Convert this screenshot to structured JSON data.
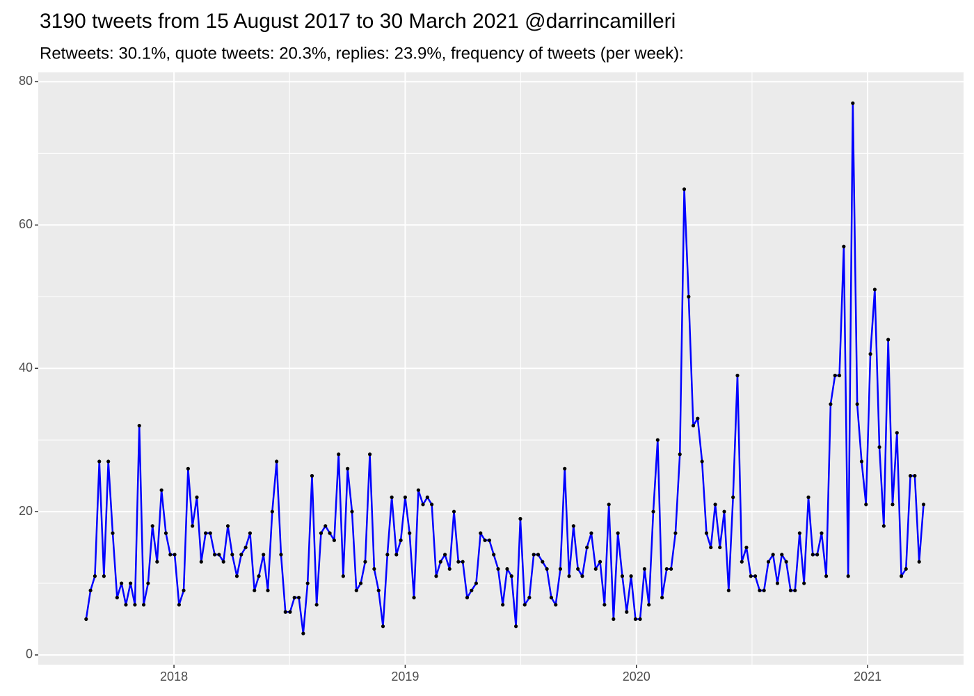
{
  "chart_data": {
    "type": "line",
    "title": "3190 tweets from 15 August 2017 to 30 March 2021 @darrincamilleri",
    "subtitle": "Retweets: 30.1%, quote tweets: 20.3%, replies: 23.9%, frequency of tweets (per week):",
    "color": "#0000ff",
    "point_color": "#000000",
    "grid": true,
    "xlim": [
      2017.413,
      2021.415
    ],
    "xticks": [
      2018,
      2019,
      2020,
      2021
    ],
    "ylim": [
      -1.36,
      81.3
    ],
    "yticks": [
      0,
      20,
      40,
      60,
      80
    ],
    "x": [
      2017.62,
      2017.639,
      2017.658,
      2017.677,
      2017.697,
      2017.716,
      2017.735,
      2017.754,
      2017.773,
      2017.792,
      2017.812,
      2017.831,
      2017.85,
      2017.869,
      2017.888,
      2017.907,
      2017.927,
      2017.946,
      2017.965,
      2017.984,
      2018.003,
      2018.022,
      2018.042,
      2018.061,
      2018.08,
      2018.099,
      2018.118,
      2018.137,
      2018.157,
      2018.176,
      2018.195,
      2018.214,
      2018.233,
      2018.252,
      2018.272,
      2018.291,
      2018.31,
      2018.329,
      2018.348,
      2018.367,
      2018.387,
      2018.406,
      2018.425,
      2018.444,
      2018.463,
      2018.482,
      2018.502,
      2018.521,
      2018.54,
      2018.559,
      2018.578,
      2018.597,
      2018.617,
      2018.636,
      2018.655,
      2018.674,
      2018.693,
      2018.712,
      2018.732,
      2018.751,
      2018.77,
      2018.789,
      2018.808,
      2018.827,
      2018.847,
      2018.866,
      2018.885,
      2018.904,
      2018.923,
      2018.942,
      2018.962,
      2018.981,
      2019.0,
      2019.019,
      2019.038,
      2019.057,
      2019.077,
      2019.096,
      2019.115,
      2019.134,
      2019.153,
      2019.172,
      2019.192,
      2019.211,
      2019.23,
      2019.249,
      2019.268,
      2019.287,
      2019.307,
      2019.326,
      2019.345,
      2019.364,
      2019.383,
      2019.402,
      2019.422,
      2019.441,
      2019.46,
      2019.479,
      2019.498,
      2019.517,
      2019.537,
      2019.556,
      2019.575,
      2019.594,
      2019.613,
      2019.632,
      2019.651,
      2019.671,
      2019.69,
      2019.709,
      2019.728,
      2019.747,
      2019.766,
      2019.786,
      2019.805,
      2019.824,
      2019.843,
      2019.862,
      2019.881,
      2019.901,
      2019.92,
      2019.939,
      2019.958,
      2019.977,
      2019.996,
      2020.016,
      2020.035,
      2020.054,
      2020.073,
      2020.092,
      2020.111,
      2020.131,
      2020.15,
      2020.169,
      2020.188,
      2020.207,
      2020.226,
      2020.246,
      2020.265,
      2020.284,
      2020.303,
      2020.322,
      2020.341,
      2020.361,
      2020.38,
      2020.399,
      2020.418,
      2020.437,
      2020.456,
      2020.476,
      2020.495,
      2020.514,
      2020.533,
      2020.552,
      2020.571,
      2020.591,
      2020.61,
      2020.629,
      2020.648,
      2020.667,
      2020.686,
      2020.706,
      2020.725,
      2020.744,
      2020.763,
      2020.782,
      2020.801,
      2020.821,
      2020.84,
      2020.859,
      2020.878,
      2020.897,
      2020.916,
      2020.936,
      2020.955,
      2020.974,
      2020.993,
      2021.012,
      2021.031,
      2021.051,
      2021.07,
      2021.089,
      2021.108,
      2021.127,
      2021.146,
      2021.166,
      2021.185,
      2021.204,
      2021.223,
      2021.242
    ],
    "values": [
      5,
      9,
      11,
      27,
      11,
      27,
      17,
      8,
      10,
      7,
      10,
      7,
      32,
      7,
      10,
      18,
      13,
      23,
      17,
      14,
      14,
      7,
      9,
      26,
      18,
      22,
      13,
      17,
      17,
      14,
      14,
      13,
      18,
      14,
      11,
      14,
      15,
      17,
      9,
      11,
      14,
      9,
      20,
      27,
      14,
      6,
      6,
      8,
      8,
      3,
      10,
      25,
      7,
      17,
      18,
      17,
      16,
      28,
      11,
      26,
      20,
      9,
      10,
      13,
      28,
      12,
      9,
      4,
      14,
      22,
      14,
      16,
      22,
      17,
      8,
      23,
      21,
      22,
      21,
      11,
      13,
      14,
      12,
      20,
      13,
      13,
      8,
      9,
      10,
      17,
      16,
      16,
      14,
      12,
      7,
      12,
      11,
      4,
      19,
      7,
      8,
      14,
      14,
      13,
      12,
      8,
      7,
      12,
      26,
      11,
      18,
      12,
      11,
      15,
      17,
      12,
      13,
      7,
      21,
      5,
      17,
      11,
      6,
      11,
      5,
      5,
      12,
      7,
      20,
      30,
      8,
      12,
      12,
      17,
      28,
      65,
      50,
      32,
      33,
      27,
      17,
      15,
      21,
      15,
      20,
      9,
      22,
      39,
      13,
      15,
      11,
      11,
      9,
      9,
      13,
      14,
      10,
      14,
      13,
      9,
      9,
      17,
      10,
      22,
      14,
      14,
      17,
      11,
      35,
      39,
      39,
      57,
      11,
      77,
      35,
      27,
      21,
      42,
      51,
      29,
      18,
      44,
      21,
      31,
      11,
      12,
      25,
      25,
      13,
      21
    ]
  }
}
